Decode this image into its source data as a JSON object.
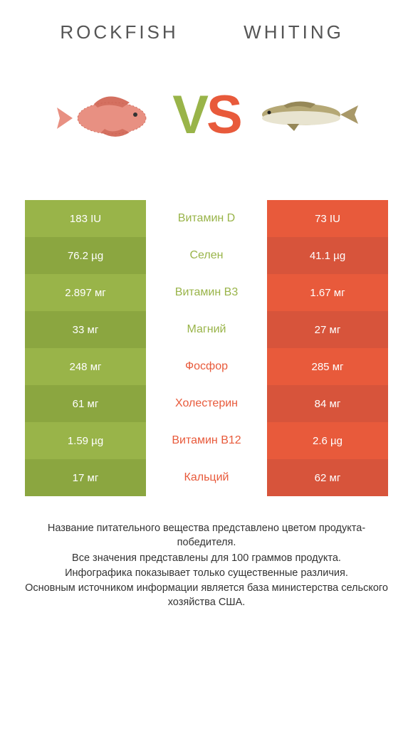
{
  "colors": {
    "left_primary": "#99b449",
    "left_secondary": "#8ba640",
    "right_primary": "#e85a3b",
    "right_secondary": "#d7543b",
    "vs_v": "#99b449",
    "vs_s": "#e85a3b"
  },
  "titles": {
    "left": "ROCKFISH",
    "right": "WHITING"
  },
  "vs": {
    "v": "V",
    "s": "S"
  },
  "rows": [
    {
      "left": "183 IU",
      "mid": "Витамин D",
      "right": "73 IU",
      "winner": "left"
    },
    {
      "left": "76.2 µg",
      "mid": "Селен",
      "right": "41.1 µg",
      "winner": "left"
    },
    {
      "left": "2.897 мг",
      "mid": "Витамин B3",
      "right": "1.67 мг",
      "winner": "left"
    },
    {
      "left": "33 мг",
      "mid": "Магний",
      "right": "27 мг",
      "winner": "left"
    },
    {
      "left": "248 мг",
      "mid": "Фосфор",
      "right": "285 мг",
      "winner": "right"
    },
    {
      "left": "61 мг",
      "mid": "Холестерин",
      "right": "84 мг",
      "winner": "right"
    },
    {
      "left": "1.59 µg",
      "mid": "Витамин B12",
      "right": "2.6 µg",
      "winner": "right"
    },
    {
      "left": "17 мг",
      "mid": "Кальций",
      "right": "62 мг",
      "winner": "right"
    }
  ],
  "footer": {
    "l1": "Название питательного вещества представлено цветом продукта-победителя.",
    "l2": "Все значения представлены для 100 граммов продукта.",
    "l3": "Инфографика показывает только существенные различия.",
    "l4": "Основным источником информации является база министерства сельского хозяйства США."
  }
}
